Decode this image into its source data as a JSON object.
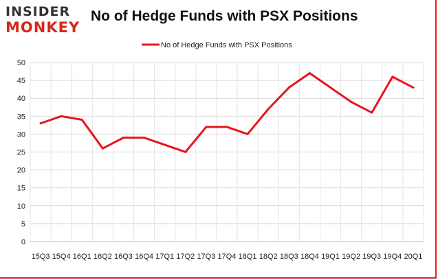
{
  "logo": {
    "line1": "INSIDER",
    "line2": "MONKEY"
  },
  "chart_data": {
    "type": "line",
    "title": "No of Hedge Funds with PSX Positions",
    "xlabel": "",
    "ylabel": "",
    "categories": [
      "15Q3",
      "15Q4",
      "16Q1",
      "16Q2",
      "16Q3",
      "16Q4",
      "17Q1",
      "17Q2",
      "17Q3",
      "17Q4",
      "18Q1",
      "18Q2",
      "18Q3",
      "18Q4",
      "19Q1",
      "19Q2",
      "19Q3",
      "19Q4",
      "20Q1"
    ],
    "series": [
      {
        "name": "No of Hedge Funds with PSX Positions",
        "values": [
          33,
          35,
          34,
          26,
          29,
          29,
          27,
          25,
          32,
          32,
          30,
          37,
          43,
          47,
          43,
          39,
          36,
          46,
          43
        ]
      }
    ],
    "ylim": [
      0,
      50
    ],
    "yticks": [
      0,
      5,
      10,
      15,
      20,
      25,
      30,
      35,
      40,
      45,
      50
    ],
    "grid": true,
    "legend": "top-center",
    "line_color": "#e8141b"
  }
}
